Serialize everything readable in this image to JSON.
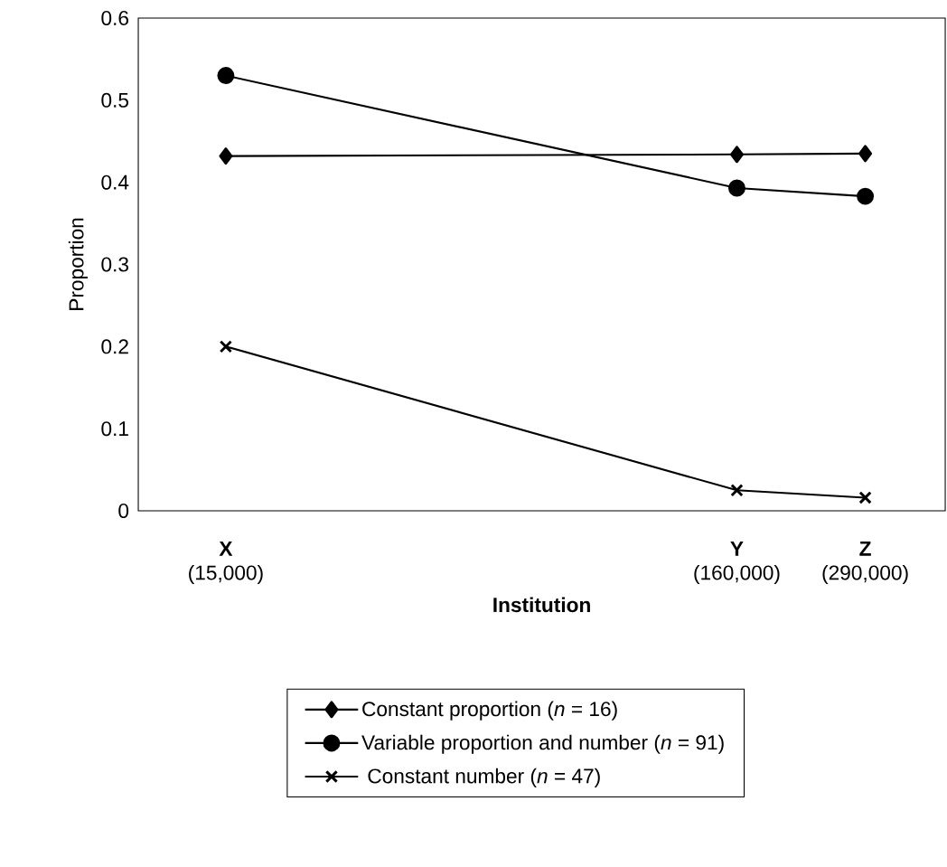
{
  "chart_data": {
    "type": "line",
    "xlabel": "Institution",
    "ylabel": "Proportion",
    "log": "x",
    "x": [
      15000,
      160000,
      290000
    ],
    "xlim": [
      10000,
      420000
    ],
    "xticks": [
      {
        "value": 15000,
        "label": "**X** (15,000)"
      },
      {
        "value": 160000,
        "label": "**Y** (160,000)"
      },
      {
        "value": 290000,
        "label": "**Z** (290,000)"
      }
    ],
    "ylim": [
      0,
      0.6
    ],
    "yticks": [
      0,
      0.1,
      0.2,
      0.3,
      0.4,
      0.5,
      0.6
    ],
    "legend": "bottom",
    "grid": false,
    "line_style": "solid",
    "series": [
      {
        "name": "Constant proportion (*n* = 16)",
        "color": "#000000",
        "marker": "diamond",
        "values": [
          0.432,
          0.434,
          0.435
        ]
      },
      {
        "name": "Variable proportion and number (*n* = 91)",
        "color": "#000000",
        "marker": "circle",
        "values": [
          0.53,
          0.393,
          0.383
        ]
      },
      {
        "name": " Constant number (*n* = 47)",
        "color": "#000000",
        "marker": "cross",
        "values": [
          0.2,
          0.025,
          0.016
        ]
      }
    ]
  }
}
